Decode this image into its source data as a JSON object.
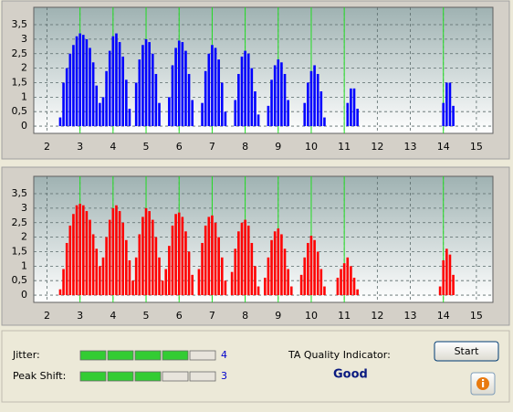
{
  "chart_data": [
    {
      "type": "bar",
      "color": "#0000ff",
      "x": [
        2.4,
        2.5,
        2.6,
        2.7,
        2.8,
        2.9,
        3.0,
        3.1,
        3.2,
        3.3,
        3.4,
        3.5,
        3.6,
        3.7,
        3.8,
        3.9,
        4.0,
        4.1,
        4.2,
        4.3,
        4.4,
        4.5,
        4.7,
        4.8,
        4.9,
        5.0,
        5.1,
        5.2,
        5.3,
        5.4,
        5.7,
        5.8,
        5.9,
        6.0,
        6.1,
        6.2,
        6.3,
        6.4,
        6.7,
        6.8,
        6.9,
        7.0,
        7.1,
        7.2,
        7.3,
        7.4,
        7.7,
        7.8,
        7.9,
        8.0,
        8.1,
        8.2,
        8.3,
        8.4,
        8.7,
        8.8,
        8.9,
        9.0,
        9.1,
        9.2,
        9.3,
        9.8,
        9.9,
        10.0,
        10.1,
        10.2,
        10.3,
        10.4,
        11.1,
        11.2,
        11.3,
        11.4,
        14.0,
        14.1,
        14.2,
        14.3
      ],
      "values": [
        0.3,
        1.5,
        2.0,
        2.5,
        2.8,
        3.1,
        3.2,
        3.15,
        3.0,
        2.7,
        2.2,
        1.4,
        0.8,
        1.0,
        1.9,
        2.6,
        3.1,
        3.2,
        2.9,
        2.4,
        1.6,
        0.6,
        1.5,
        2.3,
        2.8,
        3.0,
        2.9,
        2.5,
        1.8,
        0.8,
        1.0,
        2.1,
        2.7,
        2.95,
        2.9,
        2.6,
        1.8,
        0.9,
        0.8,
        1.9,
        2.5,
        2.8,
        2.7,
        2.3,
        1.5,
        0.5,
        0.9,
        1.8,
        2.4,
        2.6,
        2.5,
        2.0,
        1.2,
        0.4,
        0.7,
        1.6,
        2.1,
        2.3,
        2.2,
        1.8,
        0.9,
        0.8,
        1.5,
        1.9,
        2.1,
        1.8,
        1.2,
        0.3,
        0.8,
        1.3,
        1.3,
        0.6,
        0.8,
        1.5,
        1.5,
        0.7
      ],
      "xlim": [
        1.6,
        15.5
      ],
      "xticks": [
        2,
        3,
        4,
        5,
        6,
        7,
        8,
        9,
        10,
        11,
        12,
        13,
        14,
        15
      ],
      "ylim": [
        -0.25,
        4.1
      ],
      "yticks": [
        0,
        {
          "value": 0.5,
          "label": "0,5"
        },
        1,
        {
          "value": 1.5,
          "label": "1,5"
        },
        2,
        {
          "value": 2.5,
          "label": "2,5"
        },
        3,
        {
          "value": 3.5,
          "label": "3,5"
        }
      ],
      "grid": true,
      "reference_lines": [
        3,
        4,
        5,
        6,
        7,
        8,
        9,
        10,
        11,
        14
      ],
      "reference_color": "#22dd22"
    },
    {
      "type": "bar",
      "color": "#ff0000",
      "x": [
        2.4,
        2.5,
        2.6,
        2.7,
        2.8,
        2.9,
        3.0,
        3.1,
        3.2,
        3.3,
        3.4,
        3.5,
        3.6,
        3.7,
        3.8,
        3.9,
        4.0,
        4.1,
        4.2,
        4.3,
        4.4,
        4.5,
        4.6,
        4.7,
        4.8,
        4.9,
        5.0,
        5.1,
        5.2,
        5.3,
        5.4,
        5.5,
        5.6,
        5.7,
        5.8,
        5.9,
        6.0,
        6.1,
        6.2,
        6.3,
        6.4,
        6.6,
        6.7,
        6.8,
        6.9,
        7.0,
        7.1,
        7.2,
        7.3,
        7.4,
        7.6,
        7.7,
        7.8,
        7.9,
        8.0,
        8.1,
        8.2,
        8.3,
        8.4,
        8.6,
        8.7,
        8.8,
        8.9,
        9.0,
        9.1,
        9.2,
        9.3,
        9.4,
        9.7,
        9.8,
        9.9,
        10.0,
        10.1,
        10.2,
        10.3,
        10.4,
        10.8,
        10.9,
        11.0,
        11.1,
        11.2,
        11.3,
        11.4,
        13.9,
        14.0,
        14.1,
        14.2,
        14.3
      ],
      "values": [
        0.2,
        0.9,
        1.8,
        2.4,
        2.8,
        3.1,
        3.15,
        3.1,
        2.9,
        2.6,
        2.1,
        1.6,
        1.0,
        1.3,
        2.0,
        2.6,
        3.0,
        3.1,
        2.9,
        2.5,
        1.9,
        1.2,
        0.5,
        1.3,
        2.1,
        2.7,
        3.0,
        2.9,
        2.6,
        2.0,
        1.3,
        0.5,
        0.9,
        1.7,
        2.4,
        2.8,
        2.85,
        2.7,
        2.2,
        1.5,
        0.7,
        0.9,
        1.8,
        2.4,
        2.7,
        2.75,
        2.5,
        2.0,
        1.3,
        0.5,
        0.8,
        1.6,
        2.2,
        2.5,
        2.6,
        2.4,
        1.8,
        1.0,
        0.3,
        0.6,
        1.3,
        1.9,
        2.2,
        2.3,
        2.1,
        1.6,
        0.9,
        0.3,
        0.7,
        1.3,
        1.8,
        2.05,
        1.9,
        1.5,
        0.9,
        0.3,
        0.6,
        0.9,
        1.1,
        1.3,
        1.0,
        0.6,
        0.2,
        0.3,
        1.2,
        1.6,
        1.4,
        0.7
      ],
      "xlim": [
        1.6,
        15.5
      ],
      "xticks": [
        2,
        3,
        4,
        5,
        6,
        7,
        8,
        9,
        10,
        11,
        12,
        13,
        14,
        15
      ],
      "ylim": [
        -0.25,
        4.1
      ],
      "yticks": [
        0,
        {
          "value": 0.5,
          "label": "0,5"
        },
        1,
        {
          "value": 1.5,
          "label": "1,5"
        },
        2,
        {
          "value": 2.5,
          "label": "2,5"
        },
        3,
        {
          "value": 3.5,
          "label": "3,5"
        }
      ],
      "grid": true,
      "reference_lines": [
        3,
        4,
        5,
        6,
        7,
        8,
        9,
        10,
        11,
        14
      ],
      "reference_color": "#22dd22"
    }
  ],
  "panel": {
    "jitter": {
      "label": "Jitter:",
      "value": 4,
      "segments": 5
    },
    "peak_shift": {
      "label": "Peak Shift:",
      "value": 3,
      "segments": 5
    },
    "quality": {
      "label": "TA Quality Indicator:",
      "value": "Good"
    },
    "start_button": "Start"
  }
}
